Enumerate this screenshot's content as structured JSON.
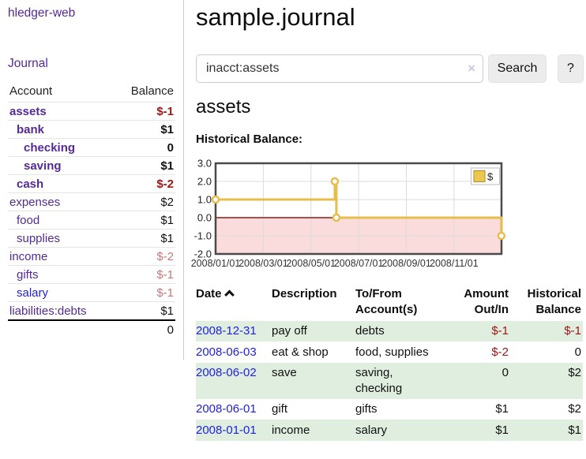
{
  "brand": "hledger-web",
  "nav": {
    "journal_label": "Journal"
  },
  "sidebar": {
    "columns": {
      "account": "Account",
      "balance": "Balance"
    },
    "accounts": [
      {
        "name": "assets",
        "indent": 1,
        "bold": true,
        "blue": false,
        "balance": "$-1",
        "balance_style": "neg-strong"
      },
      {
        "name": "bank",
        "indent": 2,
        "bold": true,
        "blue": false,
        "balance": "$1",
        "balance_style": "pos-strong"
      },
      {
        "name": "checking",
        "indent": 3,
        "bold": true,
        "blue": false,
        "balance": "0",
        "balance_style": "pos-strong"
      },
      {
        "name": "saving",
        "indent": 3,
        "bold": true,
        "blue": false,
        "balance": "$1",
        "balance_style": "pos-strong"
      },
      {
        "name": "cash",
        "indent": 2,
        "bold": true,
        "blue": false,
        "balance": "$-2",
        "balance_style": "neg-strong"
      },
      {
        "name": "expenses",
        "indent": 1,
        "bold": false,
        "blue": false,
        "balance": "$2",
        "balance_style": "pos"
      },
      {
        "name": "food",
        "indent": 2,
        "bold": false,
        "blue": false,
        "balance": "$1",
        "balance_style": "pos"
      },
      {
        "name": "supplies",
        "indent": 2,
        "bold": false,
        "blue": false,
        "balance": "$1",
        "balance_style": "pos"
      },
      {
        "name": "income",
        "indent": 1,
        "bold": false,
        "blue": false,
        "balance": "$-2",
        "balance_style": "neg-soft"
      },
      {
        "name": "gifts",
        "indent": 2,
        "bold": false,
        "blue": false,
        "balance": "$-1",
        "balance_style": "neg-soft"
      },
      {
        "name": "salary",
        "indent": 2,
        "bold": false,
        "blue": true,
        "balance": "$-1",
        "balance_style": "neg-soft"
      },
      {
        "name": "liabilities:debts",
        "indent": 1,
        "bold": false,
        "blue": false,
        "balance": "$1",
        "balance_style": "pos"
      }
    ],
    "total": "0"
  },
  "header": {
    "title": "sample.journal"
  },
  "search": {
    "value": "inacct:assets",
    "clear_icon": "×",
    "button_label": "Search",
    "help_label": "?"
  },
  "account_page": {
    "title": "assets",
    "chart_label": "Historical Balance:"
  },
  "chart_data": {
    "type": "line",
    "title": "Historical Balance",
    "step": true,
    "series": [
      {
        "name": "$",
        "points": [
          [
            "2008-01-01",
            1
          ],
          [
            "2008-06-01",
            2
          ],
          [
            "2008-06-03",
            0
          ],
          [
            "2008-12-31",
            -1
          ]
        ]
      }
    ],
    "ylim": [
      -2,
      3
    ],
    "yticks": [
      "3.0",
      "2.0",
      "1.0",
      "0.0",
      "-1.0",
      "-2.0"
    ],
    "xticks": [
      "2008/01/01",
      "2008/03/01",
      "2008/05/01",
      "2008/07/01",
      "2008/09/01",
      "2008/11/01"
    ],
    "legend": {
      "label": "$",
      "position": "top-right"
    },
    "grid": true,
    "colors": {
      "line": "#e6be4c",
      "marker_fill": "#ffffff",
      "legend_square": "#ecc74f",
      "legend_square_border": "#b08c1e",
      "negative_region": "#fadcdc",
      "zero_line": "#8b1a1a",
      "grid": "#dcdcdc",
      "border": "#4a4a4a",
      "tick_text": "#333333"
    }
  },
  "register": {
    "columns": {
      "date": "Date",
      "description": "Description",
      "accounts": "To/From Account(s)",
      "amount": "Amount Out/In",
      "balance": "Historical Balance"
    },
    "rows": [
      {
        "date": "2008-12-31",
        "description": "pay off",
        "accounts": "debts",
        "amount": "$-1",
        "amount_negative": true,
        "balance": "$-1",
        "balance_negative": true
      },
      {
        "date": "2008-06-03",
        "description": "eat & shop",
        "accounts": "food, supplies",
        "amount": "$-2",
        "amount_negative": true,
        "balance": "0",
        "balance_negative": false
      },
      {
        "date": "2008-06-02",
        "description": "save",
        "accounts": "saving, checking",
        "amount": "0",
        "amount_negative": false,
        "balance": "$2",
        "balance_negative": false
      },
      {
        "date": "2008-06-01",
        "description": "gift",
        "accounts": "gifts",
        "amount": "$1",
        "amount_negative": false,
        "balance": "$2",
        "balance_negative": false
      },
      {
        "date": "2008-01-01",
        "description": "income",
        "accounts": "salary",
        "amount": "$1",
        "amount_negative": false,
        "balance": "$1",
        "balance_negative": false
      }
    ]
  },
  "colors": {
    "link_purple": "#552a95",
    "link_blue": "#2222dd",
    "negative_strong": "#a31515",
    "negative_soft": "#c47a7a",
    "row_green": "#dfeedf"
  }
}
